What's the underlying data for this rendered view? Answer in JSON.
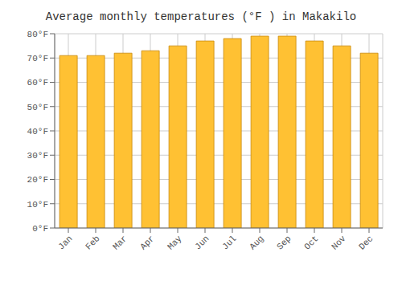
{
  "chart_data": {
    "type": "bar",
    "title": "Average monthly temperatures (°F ) in Makakilo",
    "categories": [
      "Jan",
      "Feb",
      "Mar",
      "Apr",
      "May",
      "Jun",
      "Jul",
      "Aug",
      "Sep",
      "Oct",
      "Nov",
      "Dec"
    ],
    "values": [
      71,
      71,
      72,
      73,
      75,
      77,
      78,
      79,
      79,
      77,
      75,
      72
    ],
    "color": "#FFC133",
    "ylim": [
      0,
      80
    ],
    "yticks": [
      {
        "value": 0,
        "label": "0°F"
      },
      {
        "value": 10,
        "label": "10°F"
      },
      {
        "value": 20,
        "label": "20°F"
      },
      {
        "value": 30,
        "label": "30°F"
      },
      {
        "value": 40,
        "label": "40°F"
      },
      {
        "value": 50,
        "label": "50°F"
      },
      {
        "value": 60,
        "label": "60°F"
      },
      {
        "value": 70,
        "label": "70°F"
      },
      {
        "value": 80,
        "label": "80°F"
      }
    ],
    "grid": true
  }
}
